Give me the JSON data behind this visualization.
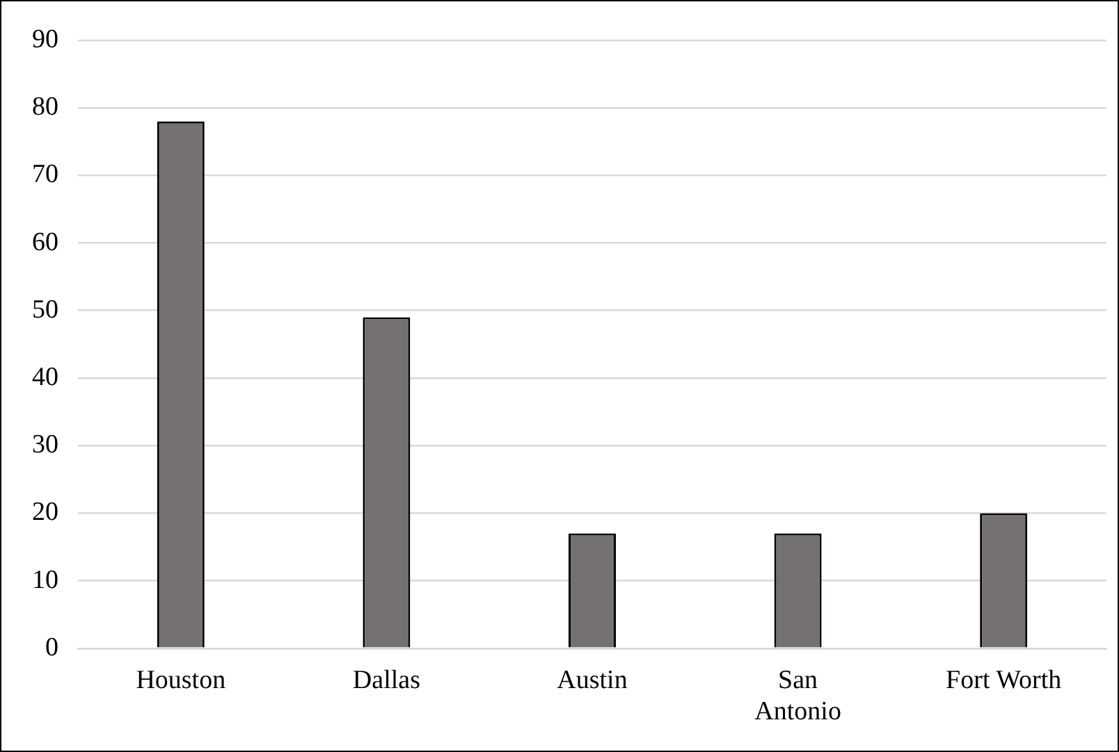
{
  "chart_data": {
    "type": "bar",
    "categories": [
      "Houston",
      "Dallas",
      "Austin",
      "San Antonio",
      "Fort Worth"
    ],
    "values": [
      78,
      49,
      17,
      17,
      20
    ],
    "color": "#767171",
    "ylim": [
      0,
      90
    ],
    "yticks": [
      0,
      10,
      20,
      30,
      40,
      50,
      60,
      70,
      80,
      90
    ],
    "grid": "y",
    "legend": false
  }
}
